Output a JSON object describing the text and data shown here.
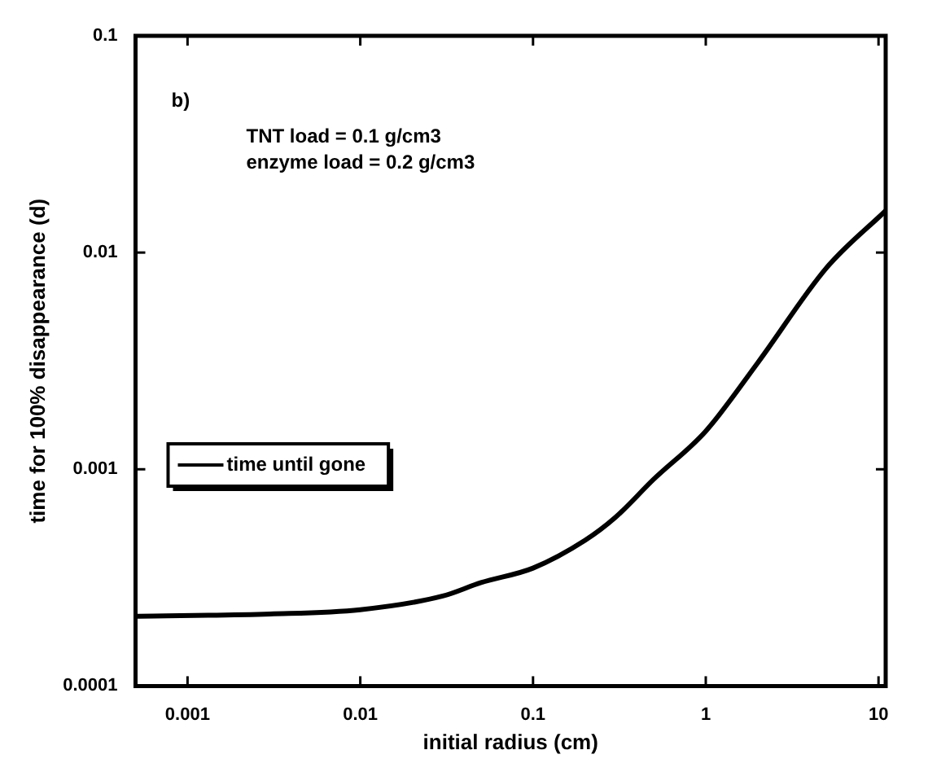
{
  "chart_data": {
    "type": "line",
    "xlabel": "initial radius (cm)",
    "ylabel": "time for 100% disappearance (d)",
    "annotations": [
      "b)",
      "TNT load = 0.1 g/cm3",
      "enzyme load = 0.2 g/cm3"
    ],
    "log": "xy",
    "xlim": [
      0.0005,
      11
    ],
    "ylim": [
      0.0001,
      0.1
    ],
    "xticks": [
      0.001,
      0.01,
      0.1,
      1,
      10
    ],
    "yticks": [
      0.0001,
      0.001,
      0.01,
      0.1
    ],
    "grid": false,
    "legend": "center left",
    "marker": "none",
    "line_style": "solid",
    "series": [
      {
        "name": "time until gone",
        "color": "#000000",
        "x": [
          0.0005,
          0.003,
          0.01,
          0.03,
          0.05,
          0.1,
          0.2,
          0.3,
          0.5,
          1,
          2,
          5,
          11
        ],
        "values": [
          0.00021,
          0.000215,
          0.000225,
          0.00026,
          0.0003,
          0.00035,
          0.00047,
          0.0006,
          0.0009,
          0.0015,
          0.0031,
          0.0085,
          0.0156
        ]
      }
    ]
  }
}
